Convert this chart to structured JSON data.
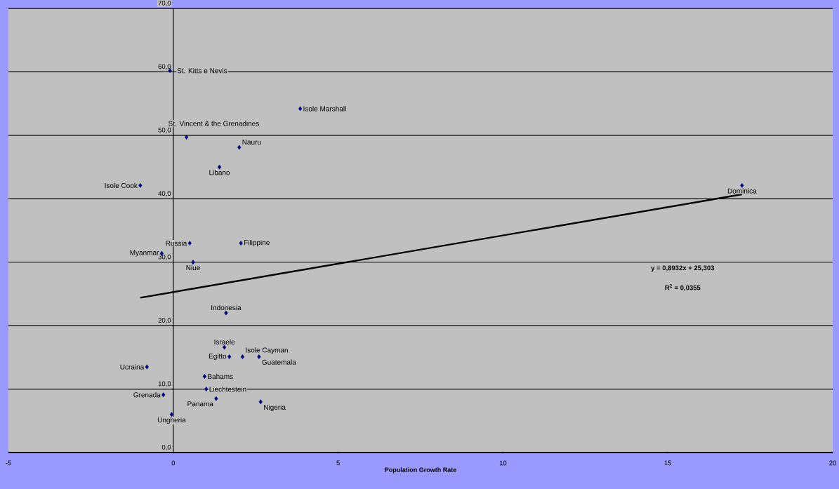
{
  "chart_data": {
    "type": "scatter",
    "xlabel": "Population Growth Rate",
    "xlim": [
      -5,
      20
    ],
    "xticks": [
      -5,
      0,
      5,
      10,
      15,
      20
    ],
    "ylim": [
      0,
      70
    ],
    "yticks": [
      {
        "value": 0,
        "label": "0,0"
      },
      {
        "value": 10,
        "label": "10,0"
      },
      {
        "value": 20,
        "label": "20,0"
      },
      {
        "value": 30,
        "label": "30,0"
      },
      {
        "value": 40,
        "label": "40,0"
      },
      {
        "value": 50,
        "label": "50,0"
      },
      {
        "value": 60,
        "label": "60,0"
      },
      {
        "value": 70,
        "label": "70,0"
      }
    ],
    "grid": "y",
    "marker": "diamond",
    "series": [
      {
        "type": "scatter",
        "color": "#000080",
        "x": [
          -0.1,
          3.85,
          0.4,
          2.0,
          1.4,
          -1.0,
          0.5,
          -0.35,
          2.05,
          0.6,
          1.6,
          1.55,
          1.7,
          2.1,
          2.6,
          -0.8,
          0.95,
          1.0,
          1.3,
          2.65,
          -0.3,
          -0.05,
          17.25
        ],
        "values": [
          60.2,
          54.2,
          49.7,
          48.1,
          45.0,
          42.1,
          33.0,
          31.4,
          33.0,
          30.0,
          22.0,
          16.6,
          15.1,
          15.1,
          15.1,
          13.5,
          12.0,
          10.0,
          8.5,
          8.0,
          9.1,
          6.0,
          42.1
        ]
      },
      {
        "type": "line",
        "marker": "none",
        "color": "#000000",
        "x": [
          -1.0,
          17.25
        ],
        "values": [
          24.4,
          40.7
        ]
      }
    ],
    "annotations": [
      {
        "text": "St. Kitts e Nevis",
        "x": -0.1,
        "y": 60.2
      },
      {
        "text": "Isole Marshall",
        "x": 3.85,
        "y": 54.2
      },
      {
        "text": "St. Vincent & the Grenadines",
        "x": 0.4,
        "y": 49.7
      },
      {
        "text": "Nauru",
        "x": 2.0,
        "y": 48.1
      },
      {
        "text": "Libano",
        "x": 1.4,
        "y": 45.0
      },
      {
        "text": "Isole Cook",
        "x": -1.0,
        "y": 42.1
      },
      {
        "text": "Russia",
        "x": 0.5,
        "y": 33.0
      },
      {
        "text": "Myanmar",
        "x": -0.35,
        "y": 31.4
      },
      {
        "text": "Filippine",
        "x": 2.05,
        "y": 33.0
      },
      {
        "text": "Niue",
        "x": 0.6,
        "y": 30.0
      },
      {
        "text": "Indonesia",
        "x": 1.6,
        "y": 22.0
      },
      {
        "text": "Israele",
        "x": 1.55,
        "y": 16.6
      },
      {
        "text": "Egitto",
        "x": 1.7,
        "y": 15.1
      },
      {
        "text": "Isole Cayman",
        "x": 2.1,
        "y": 15.1
      },
      {
        "text": "Guatemala",
        "x": 2.6,
        "y": 15.1
      },
      {
        "text": "Ucraina",
        "x": -0.8,
        "y": 13.5
      },
      {
        "text": "Bahams",
        "x": 0.95,
        "y": 12.0
      },
      {
        "text": "Liechtestein",
        "x": 1.0,
        "y": 10.0
      },
      {
        "text": "Panama",
        "x": 1.3,
        "y": 8.5
      },
      {
        "text": "Nigeria",
        "x": 2.65,
        "y": 8.0
      },
      {
        "text": "Grenada",
        "x": -0.3,
        "y": 9.1
      },
      {
        "text": "Ungheria",
        "x": -0.05,
        "y": 6.0
      },
      {
        "text": "Dominica",
        "x": 17.25,
        "y": 42.1
      },
      "y = 0,8932x + 25,303",
      "R$^{2}$ = 0,0355"
    ]
  }
}
